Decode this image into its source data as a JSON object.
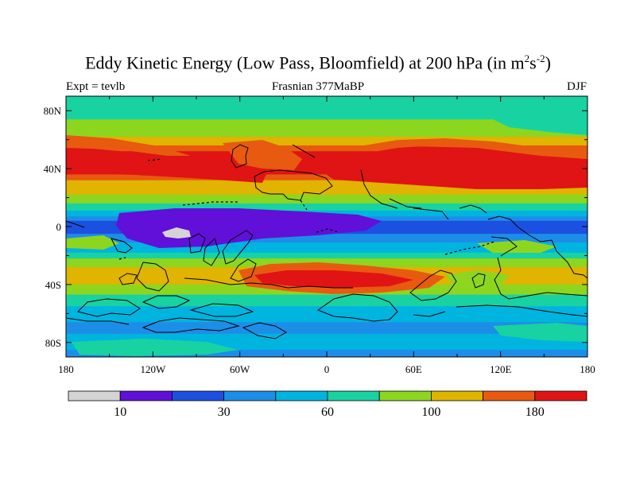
{
  "title": {
    "main": "Eddy Kinetic Energy (Low Pass, Bloomfield) at 200 hPa (in m",
    "sup1": "2",
    "mid": "s",
    "sup2": "-2",
    "end": ")"
  },
  "subtitle": {
    "left": "Expt = tevlb",
    "center": "Frasnian 377MaBP",
    "right": "DJF"
  },
  "axes": {
    "x_ticks": [
      "180",
      "120W",
      "60W",
      "0",
      "60E",
      "120E",
      "180"
    ],
    "y_ticks": [
      "80N",
      "40N",
      "0",
      "40S",
      "80S"
    ]
  },
  "colorbar": {
    "colors": [
      "#d4d4d4",
      "#6010d8",
      "#1c50e0",
      "#1c8ee8",
      "#00b4e0",
      "#18d2a2",
      "#8cd620",
      "#e0b400",
      "#e85a10",
      "#e01414"
    ],
    "labels": [
      "10",
      "30",
      "60",
      "100",
      "180"
    ]
  },
  "chart_data": {
    "type": "heatmap",
    "variable": "Eddy Kinetic Energy (Low Pass, Bloomfield) at 200 hPa",
    "units": "m2s-2",
    "season": "DJF",
    "experiment": "tevlb",
    "period": "Frasnian 377MaBP",
    "x_range": [
      -180,
      180
    ],
    "y_range": [
      -90,
      90
    ],
    "colorbar_labels": [
      10,
      30,
      60,
      100,
      180
    ]
  }
}
